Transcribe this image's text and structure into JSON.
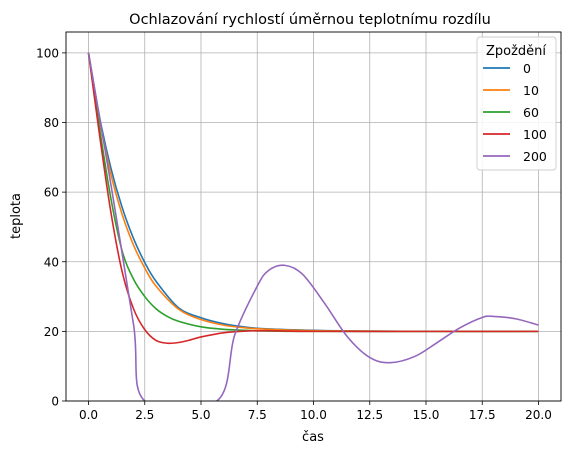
{
  "chart_data": {
    "type": "line",
    "title": "Ochlazování rychlostí úměrnou teplotnímu rozdílu",
    "xlabel": "čas",
    "ylabel": "teplota",
    "xlim": [
      -1.0,
      21.0
    ],
    "ylim": [
      0,
      106
    ],
    "xticks": [
      0.0,
      2.5,
      5.0,
      7.5,
      10.0,
      12.5,
      15.0,
      17.5,
      20.0
    ],
    "xtick_labels": [
      "0.0",
      "2.5",
      "5.0",
      "7.5",
      "10.0",
      "12.5",
      "15.0",
      "17.5",
      "20.0"
    ],
    "yticks": [
      0,
      20,
      40,
      60,
      80,
      100
    ],
    "ytick_labels": [
      "0",
      "20",
      "40",
      "60",
      "80",
      "100"
    ],
    "grid": true,
    "legend": {
      "title": "Zpoždění",
      "position": "upper-right"
    },
    "series": [
      {
        "name": "0",
        "color": "#1f77b4",
        "x": [
          0,
          0.5,
          1,
          1.5,
          2,
          2.5,
          3,
          4,
          5,
          6,
          7,
          8,
          10,
          12,
          15,
          20
        ],
        "y": [
          100,
          81.3,
          66.8,
          55.5,
          46.7,
          39.8,
          34.4,
          26.8,
          23.9,
          22.2,
          21.2,
          20.7,
          20.3,
          20.1,
          20.0,
          20.0
        ]
      },
      {
        "name": "10",
        "color": "#ff7f0e",
        "x": [
          0,
          0.5,
          1,
          1.5,
          2,
          2.5,
          3,
          4,
          5,
          6,
          7,
          8,
          10,
          12,
          15,
          20
        ],
        "y": [
          100,
          80.5,
          65.0,
          53.5,
          44.8,
          38.2,
          33.0,
          26.4,
          23.4,
          21.8,
          21.0,
          20.6,
          20.2,
          20.1,
          20.0,
          20.0
        ]
      },
      {
        "name": "60",
        "color": "#2ca02c",
        "x": [
          0,
          0.5,
          1,
          1.5,
          2,
          2.5,
          3,
          3.5,
          4,
          5,
          6,
          7,
          8,
          10,
          15,
          20
        ],
        "y": [
          100,
          78.0,
          58.0,
          43.0,
          35.0,
          30.0,
          26.5,
          24.3,
          22.9,
          21.3,
          20.6,
          20.3,
          20.1,
          20.0,
          20.0,
          20.0
        ]
      },
      {
        "name": "100",
        "color": "#d62728",
        "x": [
          0,
          0.5,
          1,
          1.5,
          2,
          2.5,
          3,
          3.5,
          4,
          4.5,
          5,
          6,
          7,
          8,
          10,
          15,
          20
        ],
        "y": [
          100,
          76.0,
          54.0,
          37.0,
          26.5,
          20.5,
          17.4,
          16.6,
          16.8,
          17.5,
          18.4,
          19.6,
          20.1,
          20.2,
          20.0,
          20.0,
          20.0
        ]
      },
      {
        "name": "200",
        "color": "#9467bd",
        "x": [
          0,
          1,
          2,
          2.5,
          5.7,
          6.5,
          7.5,
          8.0,
          8.7,
          9.5,
          10.5,
          11.5,
          12.5,
          13.4,
          14.5,
          15.5,
          16.5,
          17.5,
          18.0,
          19.0,
          20.0
        ],
        "y": [
          100,
          62.0,
          22.0,
          0,
          0,
          19.0,
          33.0,
          37.5,
          39.0,
          36.5,
          28.0,
          18.5,
          12.5,
          11.0,
          12.8,
          16.8,
          21.0,
          24.0,
          24.3,
          23.6,
          21.8
        ]
      }
    ]
  }
}
